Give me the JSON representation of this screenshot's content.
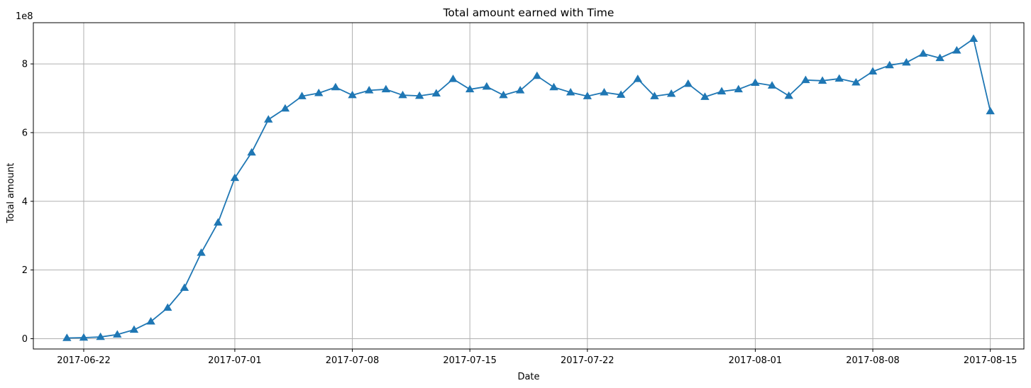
{
  "chart_data": {
    "type": "line",
    "title": "Total amount earned with Time",
    "xlabel": "Date",
    "ylabel": "Total amount",
    "y_offset_text": "1e8",
    "x_tick_labels": [
      "2017-06-22",
      "2017-07-01",
      "2017-07-08",
      "2017-07-15",
      "2017-07-22",
      "2017-08-01",
      "2017-08-08",
      "2017-08-15"
    ],
    "y_tick_labels": [
      "0",
      "2",
      "4",
      "6",
      "8"
    ],
    "y_ticks": [
      0,
      2,
      4,
      6,
      8
    ],
    "ylim": [
      -0.3,
      9.2
    ],
    "xlim": [
      "2017-06-19",
      "2017-08-17"
    ],
    "grid": true,
    "marker": "triangle-up",
    "line_color": "#1f77b4",
    "series": [
      {
        "x": [
          "2017-06-21",
          "2017-06-22",
          "2017-06-23",
          "2017-06-24",
          "2017-06-25",
          "2017-06-26",
          "2017-06-27",
          "2017-06-28",
          "2017-06-29",
          "2017-06-30",
          "2017-07-01",
          "2017-07-02",
          "2017-07-03",
          "2017-07-04",
          "2017-07-05",
          "2017-07-06",
          "2017-07-07",
          "2017-07-08",
          "2017-07-09",
          "2017-07-10",
          "2017-07-11",
          "2017-07-12",
          "2017-07-13",
          "2017-07-14",
          "2017-07-15",
          "2017-07-16",
          "2017-07-17",
          "2017-07-18",
          "2017-07-19",
          "2017-07-20",
          "2017-07-21",
          "2017-07-22",
          "2017-07-23",
          "2017-07-24",
          "2017-07-25",
          "2017-07-26",
          "2017-07-27",
          "2017-07-28",
          "2017-07-29",
          "2017-07-30",
          "2017-07-31",
          "2017-08-01",
          "2017-08-02",
          "2017-08-03",
          "2017-08-04",
          "2017-08-05",
          "2017-08-06",
          "2017-08-07",
          "2017-08-08",
          "2017-08-09",
          "2017-08-10",
          "2017-08-11",
          "2017-08-12",
          "2017-08-13",
          "2017-08-14",
          "2017-08-15"
        ],
        "values": [
          0.02,
          0.03,
          0.05,
          0.12,
          0.26,
          0.5,
          0.9,
          1.48,
          2.5,
          3.38,
          4.68,
          5.42,
          6.38,
          6.7,
          7.06,
          7.15,
          7.32,
          7.09,
          7.23,
          7.26,
          7.09,
          7.07,
          7.14,
          7.56,
          7.26,
          7.34,
          7.09,
          7.23,
          7.65,
          7.32,
          7.17,
          7.06,
          7.17,
          7.1,
          7.56,
          7.06,
          7.13,
          7.42,
          7.04,
          7.2,
          7.26,
          7.45,
          7.37,
          7.07,
          7.53,
          7.51,
          7.57,
          7.46,
          7.78,
          7.96,
          8.04,
          8.3,
          8.17,
          8.39,
          8.73,
          6.62
        ]
      }
    ]
  }
}
